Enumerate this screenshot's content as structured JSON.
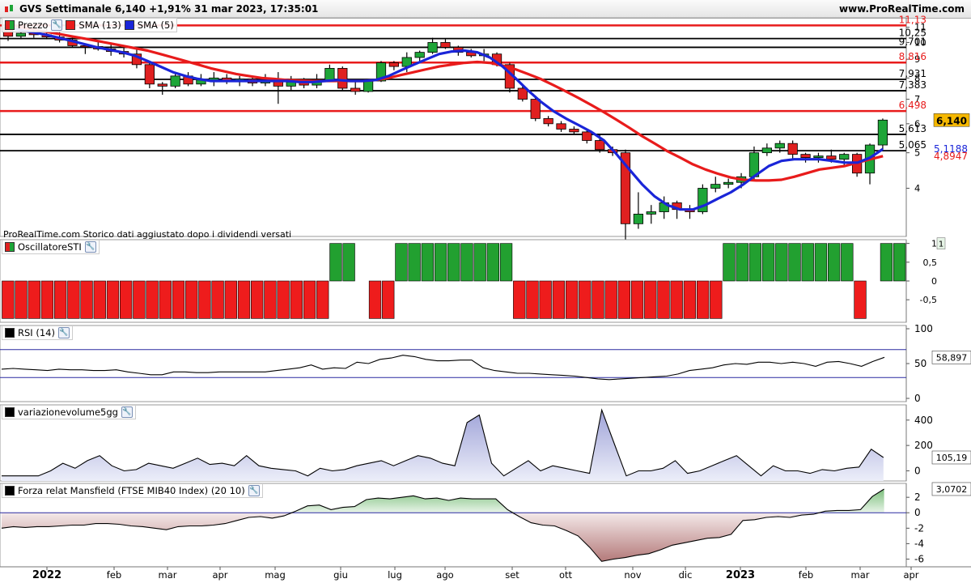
{
  "header": {
    "title": "GVS Settimanale 6,140 +1,91% 31 mar 2023, 17:35:01",
    "site": "www.ProRealTime.com"
  },
  "panels": {
    "price": {
      "legend": [
        "Prezzo",
        "SMA (13)",
        "SMA (5)"
      ],
      "note": "ProRealTime.com Storico dati aggiustato dopo i dividendi versati"
    },
    "sti": {
      "legend": "OscillatoreSTI"
    },
    "rsi": {
      "legend": "RSI (14)"
    },
    "vol": {
      "legend": "variazionevolume5gg"
    },
    "mansfield": {
      "legend": "Forza relat Mansfield (FTSE MIB40 Index) (20 10)"
    }
  },
  "colors": {
    "up": "#1ea538",
    "down": "#e02020",
    "sma13": "#e81b1b",
    "sma5": "#1a25d8",
    "resistance_red": "#e81b1b",
    "level_black": "#000000",
    "sti_green": "#22a030",
    "sti_red": "#ee1c1c",
    "price_badge": "#f5b800",
    "sma5_label": "#1a25d8",
    "sma13_label": "#e81b1b"
  },
  "chart_data": [
    {
      "type": "candlestick",
      "title": "GVS Settimanale",
      "x_labels": [
        "2022",
        "feb",
        "mar",
        "apr",
        "mag",
        "giu",
        "lug",
        "ago",
        "set",
        "ott",
        "nov",
        "dic",
        "2023",
        "feb",
        "mar",
        "apr"
      ],
      "y_ticks": [
        4,
        5,
        6,
        7,
        8,
        9,
        10,
        11
      ],
      "y_scale": "log",
      "ylim": [
        3,
        11.5
      ],
      "last_price": "6,140",
      "sma5_last": "5,1188",
      "sma13_last": "4,8947",
      "levels": [
        {
          "value": 11.13,
          "label": "11,13",
          "color": "red"
        },
        {
          "value": 10.25,
          "label": "10,25",
          "color": "black"
        },
        {
          "value": 9.701,
          "label": "9,701",
          "color": "black"
        },
        {
          "value": 8.816,
          "label": "8,816",
          "color": "red"
        },
        {
          "value": 7.931,
          "label": "7,931",
          "color": "black"
        },
        {
          "value": 7.383,
          "label": "7,383",
          "color": "black"
        },
        {
          "value": 6.498,
          "label": "6,498",
          "color": "red"
        },
        {
          "value": 5.613,
          "label": "5,613",
          "color": "black"
        },
        {
          "value": 5.065,
          "label": "5,065",
          "color": "black"
        }
      ],
      "ohlc": [
        [
          11.0,
          11.1,
          10.1,
          10.4
        ],
        [
          10.4,
          11.0,
          10.2,
          10.6
        ],
        [
          10.6,
          10.8,
          10.3,
          10.5
        ],
        [
          10.5,
          11.0,
          10.2,
          10.35
        ],
        [
          10.35,
          11.0,
          10.0,
          10.15
        ],
        [
          10.15,
          10.3,
          9.7,
          9.8
        ],
        [
          9.8,
          9.9,
          9.3,
          9.75
        ],
        [
          9.75,
          10.1,
          9.5,
          9.6
        ],
        [
          9.6,
          10.0,
          9.2,
          9.45
        ],
        [
          9.45,
          9.8,
          9.1,
          9.3
        ],
        [
          9.3,
          9.6,
          8.5,
          8.7
        ],
        [
          8.7,
          8.9,
          7.5,
          7.7
        ],
        [
          7.7,
          7.8,
          7.2,
          7.6
        ],
        [
          7.6,
          8.3,
          7.5,
          8.1
        ],
        [
          8.1,
          8.3,
          7.6,
          7.7
        ],
        [
          7.7,
          8.2,
          7.6,
          7.9
        ],
        [
          7.9,
          8.3,
          7.6,
          8.0
        ],
        [
          8.0,
          8.2,
          7.7,
          7.85
        ],
        [
          7.85,
          8.1,
          7.6,
          7.95
        ],
        [
          7.95,
          8.1,
          7.6,
          7.75
        ],
        [
          7.75,
          8.2,
          7.6,
          7.9
        ],
        [
          7.9,
          8.3,
          6.8,
          7.6
        ],
        [
          7.6,
          8.1,
          7.4,
          7.8
        ],
        [
          7.8,
          8.0,
          7.5,
          7.65
        ],
        [
          7.65,
          8.2,
          7.5,
          7.9
        ],
        [
          7.9,
          8.7,
          7.8,
          8.5
        ],
        [
          8.5,
          8.6,
          7.4,
          7.5
        ],
        [
          7.5,
          7.8,
          7.2,
          7.35
        ],
        [
          7.35,
          7.9,
          7.3,
          7.85
        ],
        [
          7.85,
          8.9,
          7.8,
          8.8
        ],
        [
          8.8,
          8.9,
          8.4,
          8.6
        ],
        [
          8.6,
          9.4,
          8.3,
          9.1
        ],
        [
          9.1,
          9.5,
          8.8,
          9.4
        ],
        [
          9.4,
          10.3,
          9.3,
          10.0
        ],
        [
          10.0,
          10.2,
          9.6,
          9.7
        ],
        [
          9.7,
          9.8,
          9.2,
          9.4
        ],
        [
          9.4,
          9.6,
          9.1,
          9.2
        ],
        [
          9.2,
          9.6,
          8.9,
          9.3
        ],
        [
          9.3,
          9.4,
          8.6,
          8.7
        ],
        [
          8.7,
          8.8,
          7.3,
          7.5
        ],
        [
          7.5,
          7.6,
          6.9,
          7.0
        ],
        [
          7.0,
          7.1,
          6.1,
          6.2
        ],
        [
          6.2,
          6.3,
          5.9,
          6.0
        ],
        [
          6.0,
          6.1,
          5.7,
          5.8
        ],
        [
          5.8,
          5.9,
          5.6,
          5.7
        ],
        [
          5.7,
          5.8,
          5.3,
          5.4
        ],
        [
          5.4,
          5.6,
          5.0,
          5.1
        ],
        [
          5.1,
          5.2,
          4.9,
          5.0
        ],
        [
          5.0,
          5.1,
          2.9,
          3.2
        ],
        [
          3.2,
          3.9,
          3.1,
          3.4
        ],
        [
          3.4,
          3.6,
          3.2,
          3.45
        ],
        [
          3.45,
          3.8,
          3.3,
          3.65
        ],
        [
          3.65,
          3.7,
          3.3,
          3.5
        ],
        [
          3.5,
          3.6,
          3.3,
          3.45
        ],
        [
          3.45,
          4.1,
          3.4,
          4.0
        ],
        [
          4.0,
          4.3,
          3.9,
          4.1
        ],
        [
          4.1,
          4.25,
          4.0,
          4.15
        ],
        [
          4.15,
          4.4,
          4.0,
          4.3
        ],
        [
          4.3,
          5.2,
          4.2,
          5.0
        ],
        [
          5.0,
          5.3,
          4.9,
          5.15
        ],
        [
          5.15,
          5.4,
          5.0,
          5.3
        ],
        [
          5.3,
          5.4,
          4.8,
          4.95
        ],
        [
          4.95,
          5.0,
          4.7,
          4.85
        ],
        [
          4.85,
          5.0,
          4.7,
          4.9
        ],
        [
          4.9,
          5.1,
          4.7,
          4.8
        ],
        [
          4.8,
          5.0,
          4.6,
          4.95
        ],
        [
          4.95,
          5.0,
          4.3,
          4.4
        ],
        [
          4.4,
          5.3,
          4.1,
          5.25
        ],
        [
          5.25,
          6.2,
          5.1,
          6.14
        ]
      ],
      "sma13": [
        11.2,
        11.0,
        10.85,
        10.7,
        10.55,
        10.4,
        10.25,
        10.1,
        9.95,
        9.8,
        9.65,
        9.5,
        9.3,
        9.1,
        8.9,
        8.7,
        8.5,
        8.35,
        8.2,
        8.1,
        8.0,
        7.95,
        7.9,
        7.88,
        7.85,
        7.85,
        7.85,
        7.85,
        7.85,
        7.9,
        8.0,
        8.15,
        8.3,
        8.45,
        8.6,
        8.7,
        8.8,
        8.85,
        8.8,
        8.65,
        8.45,
        8.2,
        7.95,
        7.65,
        7.35,
        7.05,
        6.75,
        6.45,
        6.15,
        5.85,
        5.55,
        5.3,
        5.05,
        4.85,
        4.65,
        4.5,
        4.38,
        4.28,
        4.22,
        4.2,
        4.2,
        4.22,
        4.3,
        4.4,
        4.5,
        4.55,
        4.6,
        4.7,
        4.8,
        4.8947
      ],
      "sma5": [
        11.0,
        10.8,
        10.65,
        10.5,
        10.3,
        10.1,
        9.9,
        9.7,
        9.55,
        9.4,
        9.2,
        8.9,
        8.6,
        8.3,
        8.1,
        7.95,
        7.85,
        7.85,
        7.85,
        7.85,
        7.85,
        7.85,
        7.85,
        7.8,
        7.8,
        7.85,
        7.9,
        7.85,
        7.85,
        7.9,
        8.1,
        8.4,
        8.7,
        9.0,
        9.3,
        9.45,
        9.5,
        9.4,
        9.1,
        8.6,
        8.0,
        7.4,
        6.9,
        6.5,
        6.2,
        5.95,
        5.7,
        5.4,
        4.95,
        4.5,
        4.1,
        3.8,
        3.6,
        3.5,
        3.5,
        3.6,
        3.75,
        3.9,
        4.1,
        4.35,
        4.6,
        4.75,
        4.8,
        4.8,
        4.8,
        4.75,
        4.7,
        4.7,
        4.85,
        5.1188
      ]
    },
    {
      "type": "bar",
      "title": "OscillatoreSTI",
      "y_ticks": [
        -0.5,
        0,
        0.5,
        1
      ],
      "ylim": [
        -1.1,
        1.1
      ],
      "last_value": "1",
      "values": [
        -1,
        -1,
        -1,
        -1,
        -1,
        -1,
        -1,
        -1,
        -1,
        -1,
        -1,
        -1,
        -1,
        -1,
        -1,
        -1,
        -1,
        -1,
        -1,
        -1,
        -1,
        -1,
        -1,
        -1,
        -1,
        1,
        1,
        0,
        -1,
        -1,
        1,
        1,
        1,
        1,
        1,
        1,
        1,
        1,
        1,
        -1,
        -1,
        -1,
        -1,
        -1,
        -1,
        -1,
        -1,
        -1,
        -1,
        -1,
        -1,
        -1,
        -1,
        -1,
        -1,
        1,
        1,
        1,
        1,
        1,
        1,
        1,
        1,
        1,
        1,
        -1,
        0,
        1,
        1
      ]
    },
    {
      "type": "line",
      "title": "RSI (14)",
      "y_ticks": [
        0,
        50,
        100
      ],
      "ylim": [
        0,
        100
      ],
      "band": [
        30,
        70
      ],
      "last_value": "58,897",
      "values": [
        42,
        43,
        42,
        41,
        40,
        42,
        41,
        41,
        40,
        40,
        41,
        38,
        36,
        34,
        34,
        38,
        38,
        37,
        37,
        38,
        38,
        38,
        38,
        38,
        40,
        42,
        44,
        48,
        42,
        44,
        43,
        52,
        50,
        56,
        58,
        62,
        60,
        56,
        54,
        54,
        55,
        55,
        44,
        40,
        38,
        36,
        36,
        35,
        34,
        33,
        32,
        30,
        28,
        27,
        28,
        29,
        30,
        31,
        32,
        35,
        40,
        42,
        44,
        48,
        50,
        49,
        52,
        52,
        50,
        52,
        50,
        46,
        52,
        53,
        50,
        46,
        53,
        58.9
      ]
    },
    {
      "type": "area",
      "title": "variazionevolume5gg",
      "y_ticks": [
        0,
        200,
        400
      ],
      "ylim": [
        -80,
        520
      ],
      "last_value": "105,19",
      "values": [
        -40,
        -40,
        -40,
        -40,
        0,
        60,
        20,
        80,
        120,
        40,
        0,
        10,
        60,
        40,
        20,
        60,
        100,
        50,
        60,
        40,
        120,
        40,
        20,
        10,
        0,
        -40,
        20,
        0,
        10,
        40,
        60,
        80,
        40,
        80,
        120,
        100,
        60,
        40,
        380,
        440,
        60,
        -40,
        20,
        80,
        0,
        40,
        20,
        0,
        -20,
        480,
        220,
        -40,
        0,
        0,
        20,
        80,
        -20,
        0,
        40,
        80,
        120,
        40,
        -40,
        40,
        0,
        0,
        -20,
        10,
        0,
        20,
        30,
        170,
        105.19
      ]
    },
    {
      "type": "area",
      "title": "Forza relat Mansfield (FTSE MIB40 Index) (20 10)",
      "y_ticks": [
        -6,
        -4,
        -2,
        0,
        2
      ],
      "ylim": [
        -7,
        3.8
      ],
      "last_value": "3,0702",
      "values": [
        -2.0,
        -1.8,
        -1.9,
        -1.8,
        -1.8,
        -1.7,
        -1.6,
        -1.6,
        -1.4,
        -1.4,
        -1.5,
        -1.7,
        -1.8,
        -2.0,
        -2.2,
        -1.8,
        -1.7,
        -1.7,
        -1.6,
        -1.4,
        -1.0,
        -0.6,
        -0.5,
        -0.7,
        -0.4,
        0.2,
        0.9,
        1.0,
        0.4,
        0.7,
        0.8,
        1.7,
        1.9,
        1.8,
        2.0,
        2.2,
        1.8,
        1.9,
        1.6,
        1.9,
        1.8,
        1.8,
        1.8,
        0.4,
        -0.5,
        -1.3,
        -1.6,
        -1.7,
        -2.3,
        -3.0,
        -4.5,
        -6.3,
        -6.0,
        -5.8,
        -5.5,
        -5.3,
        -4.8,
        -4.2,
        -3.9,
        -3.6,
        -3.3,
        -3.2,
        -2.8,
        -1.0,
        -0.9,
        -0.6,
        -0.5,
        -0.6,
        -0.3,
        -0.2,
        0.2,
        0.3,
        0.3,
        0.4,
        2.1,
        3.07
      ]
    }
  ]
}
